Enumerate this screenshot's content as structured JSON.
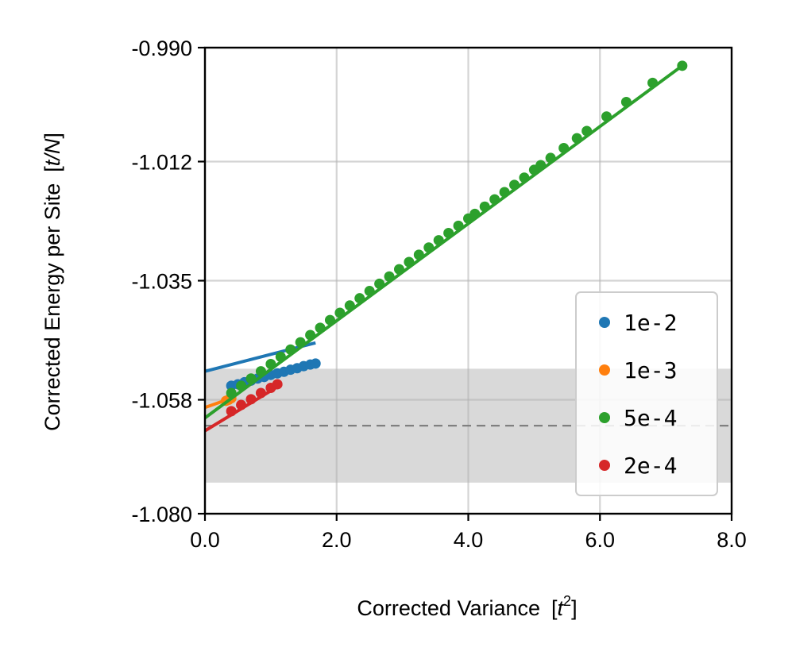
{
  "chart_data": {
    "type": "scatter",
    "xlabel_main": "Corrected Variance",
    "xlabel_unit": "t",
    "xlabel_unit_sup": "2",
    "ylabel_main": "Corrected Energy per Site",
    "ylabel_unit": "t/N",
    "xlim": [
      0.0,
      8.0
    ],
    "ylim": [
      -1.08,
      -0.99
    ],
    "x_ticks": [
      0.0,
      2.0,
      4.0,
      6.0,
      8.0
    ],
    "x_tick_labels": [
      "0.0",
      "2.0",
      "4.0",
      "6.0",
      "8.0"
    ],
    "y_ticks": [
      -0.99,
      -1.012,
      -1.035,
      -1.058,
      -1.08
    ],
    "y_tick_labels": [
      "-0.990",
      "-1.012",
      "-1.035",
      "-1.058",
      "-1.080"
    ],
    "grid": true,
    "reference_line": -1.063,
    "reference_band": [
      -1.074,
      -1.052
    ],
    "legend_position": "lower-right",
    "series": [
      {
        "name": "1e-2",
        "color": "#1f77b4",
        "fit": {
          "x": [
            0.0,
            1.68
          ],
          "y": [
            -1.0525,
            -1.047
          ]
        },
        "x": [
          0.4,
          0.5,
          0.6,
          0.7,
          0.8,
          0.9,
          1.0,
          1.1,
          1.2,
          1.3,
          1.4,
          1.5,
          1.6,
          1.68
        ],
        "y": [
          -1.0553,
          -1.055,
          -1.0546,
          -1.0543,
          -1.0539,
          -1.0536,
          -1.0532,
          -1.0529,
          -1.0526,
          -1.0522,
          -1.0519,
          -1.0515,
          -1.0512,
          -1.051
        ]
      },
      {
        "name": "1e-3",
        "color": "#ff7f0e",
        "fit": {
          "x": [
            0.0,
            0.4
          ],
          "y": [
            -1.0595,
            -1.0577
          ]
        },
        "x": [
          0.32,
          0.36,
          0.4
        ],
        "y": [
          -1.0582,
          -1.058,
          -1.0577
        ]
      },
      {
        "name": "5e-4",
        "color": "#2ca02c",
        "fit": {
          "x": [
            0.0,
            7.25
          ],
          "y": [
            -1.0615,
            -0.9935
          ]
        },
        "x": [
          0.4,
          0.55,
          0.7,
          0.85,
          1.0,
          1.15,
          1.3,
          1.45,
          1.6,
          1.75,
          1.9,
          2.05,
          2.2,
          2.35,
          2.5,
          2.65,
          2.8,
          2.95,
          3.1,
          3.25,
          3.4,
          3.55,
          3.7,
          3.85,
          4.0,
          4.1,
          4.25,
          4.4,
          4.55,
          4.7,
          4.85,
          5.0,
          5.1,
          5.25,
          5.45,
          5.65,
          5.8,
          6.1,
          6.4,
          6.8,
          7.25
        ],
        "y": [
          -1.0567,
          -1.0553,
          -1.0539,
          -1.0525,
          -1.0511,
          -1.0497,
          -1.0483,
          -1.0469,
          -1.0455,
          -1.0441,
          -1.0426,
          -1.0412,
          -1.0398,
          -1.0384,
          -1.037,
          -1.0356,
          -1.0342,
          -1.0328,
          -1.0314,
          -1.03,
          -1.0286,
          -1.0272,
          -1.0258,
          -1.0244,
          -1.023,
          -1.0221,
          -1.0207,
          -1.0193,
          -1.0179,
          -1.0165,
          -1.0151,
          -1.0136,
          -1.0127,
          -1.0113,
          -1.0094,
          -1.0075,
          -1.0061,
          -1.0033,
          -1.0005,
          -0.9968,
          -0.9935
        ]
      },
      {
        "name": "2e-4",
        "color": "#d62728",
        "fit": {
          "x": [
            0.0,
            1.1
          ],
          "y": [
            -1.064,
            -1.0555
          ]
        },
        "x": [
          0.4,
          0.55,
          0.7,
          0.85,
          1.0,
          1.1
        ],
        "y": [
          -1.0602,
          -1.059,
          -1.0579,
          -1.0567,
          -1.0557,
          -1.055
        ]
      }
    ]
  }
}
